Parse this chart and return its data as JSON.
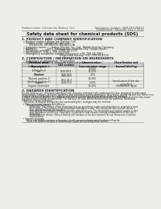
{
  "bg_color": "#f0ede8",
  "text_color": "#222222",
  "header_color": "#555555",
  "line_color": "#888888",
  "table_line_color": "#777777",
  "table_header_bg": "#cccccc",
  "title": "Safety data sheet for chemical products (SDS)",
  "header_left": "Product name: Lithium Ion Battery Cell",
  "header_right1": "Substance number: SBN-049-00010",
  "header_right2": "Established / Revision: Dec.1.2010",
  "s1_title": "1. PRODUCT AND COMPANY IDENTIFICATION",
  "s1_lines": [
    "  • Product name: Lithium Ion Battery Cell",
    "  • Product code: Cylindrical-type cell",
    "         SIV-B6500, SIV-B8500, SIV-B6500A",
    "  • Company name:      Sanyo Electric Co., Ltd., Mobile Energy Company",
    "  • Address:            2001  Kamiyashiro, Sumoto-City, Hyogo, Japan",
    "  • Telephone number:  +81-(799)-26-4111",
    "  • Fax number:  +81-1-799-26-4120",
    "  • Emergency telephone number (daytime): +81-799-26-3962",
    "                                               (Night and holiday) +81-799-26-4120"
  ],
  "s2_title": "2. COMPOSITION / INFORMATION ON INGREDIENTS",
  "s2_line1": "  • Substance or preparation: Preparation",
  "s2_line2": "  • Information about the chemical nature of product:",
  "tbl_h": [
    "Chemical name\n(Synonyms)",
    "CAS number",
    "Concentration /\nConcentration range",
    "Classification and\nhazard labeling"
  ],
  "tbl_rows": [
    [
      "Lithium cobalt oxide\n(LiMnCoO(x))",
      "",
      "30-60%",
      ""
    ],
    [
      "Iron",
      "7439-89-6",
      "10-20%",
      ""
    ],
    [
      "Aluminum",
      "7429-90-5",
      "2-5%",
      ""
    ],
    [
      "Graphite\n(Natural graphite-1)\n(Artificial graphite-1)",
      "7782-42-5\n1762-44-0",
      "10-20%",
      ""
    ],
    [
      "Copper",
      "7440-50-8",
      "5-15%",
      "Sensitization of the skin\ngroup No.2"
    ],
    [
      "Organic electrolyte",
      "",
      "10-20%",
      "Inflammable liquid"
    ]
  ],
  "s3_title": "3. HAZARDS IDENTIFICATION",
  "s3_para1": [
    "For the battery cell, chemical substances are stored in a hermetically sealed metal case, designed to withstand",
    "temperature changes, pressure variations and vibrations during normal use. As a result, during normal use, there is no",
    "physical danger of ignition or explosion and there is no danger of hazardous materials leakage.",
    "   However, if exposed to a fire, added mechanical shocks, decomposed, when electro-mechanical stress may cause",
    "the gas release cannot be operated. The battery cell case will be breached at fire-patterns, hazardous",
    "materials may be released.",
    "   Moreover, if heated strongly by the surrounding fire, acid gas may be emitted."
  ],
  "s3_bullet1": "  • Most important hazard and effects:",
  "s3_health": "       Human health effects:",
  "s3_health_lines": [
    "           Inhalation: The release of the electrolyte has an anesthesia action and stimulates in respiratory tract.",
    "           Skin contact: The release of the electrolyte stimulates a skin. The electrolyte skin contact causes a",
    "           sore and stimulation on the skin.",
    "           Eye contact: The release of the electrolyte stimulates eyes. The electrolyte eye contact causes a sore",
    "           and stimulation on the eye. Especially, a substance that causes a strong inflammation of the eye is",
    "           contained.",
    "           Environmental effects: Since a battery cell remains in the environment, do not throw out it into the",
    "           environment."
  ],
  "s3_bullet2": "  • Specific hazards:",
  "s3_specific": [
    "       If the electrolyte contacts with water, it will generate detrimental hydrogen fluoride.",
    "       Since the said electrolyte is inflammable liquid, do not bring close to fire."
  ]
}
